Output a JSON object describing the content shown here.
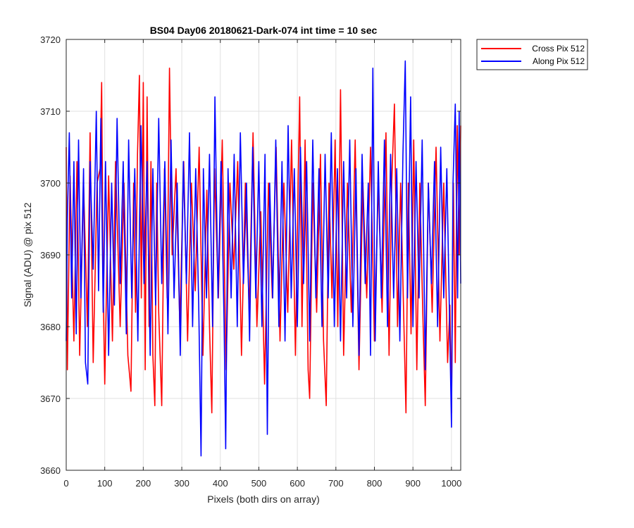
{
  "chart_data": {
    "type": "line",
    "title": "BS04 Day06 20180621-Dark-074 int time = 10 sec",
    "xlabel": "Pixels (both dirs on array)",
    "ylabel": "Signal (ADU) @ pix 512",
    "xlim": [
      0,
      1024
    ],
    "ylim": [
      3660,
      3720
    ],
    "xticks": [
      0,
      100,
      200,
      300,
      400,
      500,
      600,
      700,
      800,
      900,
      1000
    ],
    "yticks": [
      3660,
      3670,
      3680,
      3690,
      3700,
      3710,
      3720
    ],
    "grid": true,
    "legend_position": "outside-top-right",
    "series": [
      {
        "name": "Cross Pix 512",
        "color": "#ff0000",
        "points": [
          [
            0,
            3705
          ],
          [
            3,
            3674
          ],
          [
            10,
            3701
          ],
          [
            20,
            3678
          ],
          [
            28,
            3703
          ],
          [
            35,
            3676
          ],
          [
            45,
            3700
          ],
          [
            55,
            3680
          ],
          [
            62,
            3707
          ],
          [
            70,
            3675
          ],
          [
            80,
            3700
          ],
          [
            88,
            3702
          ],
          [
            92,
            3714
          ],
          [
            96,
            3685
          ],
          [
            100,
            3672
          ],
          [
            110,
            3701
          ],
          [
            120,
            3678
          ],
          [
            128,
            3703
          ],
          [
            140,
            3680
          ],
          [
            150,
            3700
          ],
          [
            160,
            3676
          ],
          [
            165,
            3673
          ],
          [
            168,
            3671
          ],
          [
            175,
            3700
          ],
          [
            180,
            3682
          ],
          [
            185,
            3704
          ],
          [
            190,
            3715
          ],
          [
            195,
            3684
          ],
          [
            200,
            3714
          ],
          [
            205,
            3674
          ],
          [
            210,
            3712
          ],
          [
            215,
            3680
          ],
          [
            220,
            3703
          ],
          [
            225,
            3676
          ],
          [
            230,
            3669
          ],
          [
            235,
            3700
          ],
          [
            240,
            3682
          ],
          [
            248,
            3669
          ],
          [
            255,
            3702
          ],
          [
            262,
            3684
          ],
          [
            268,
            3716
          ],
          [
            275,
            3690
          ],
          [
            285,
            3702
          ],
          [
            295,
            3680
          ],
          [
            305,
            3703
          ],
          [
            315,
            3678
          ],
          [
            325,
            3700
          ],
          [
            335,
            3685
          ],
          [
            345,
            3705
          ],
          [
            355,
            3676
          ],
          [
            365,
            3699
          ],
          [
            372,
            3680
          ],
          [
            378,
            3668
          ],
          [
            385,
            3702
          ],
          [
            395,
            3684
          ],
          [
            405,
            3706
          ],
          [
            415,
            3674
          ],
          [
            425,
            3700
          ],
          [
            435,
            3688
          ],
          [
            445,
            3703
          ],
          [
            455,
            3676
          ],
          [
            465,
            3700
          ],
          [
            475,
            3682
          ],
          [
            485,
            3707
          ],
          [
            495,
            3680
          ],
          [
            505,
            3696
          ],
          [
            515,
            3672
          ],
          [
            525,
            3700
          ],
          [
            535,
            3684
          ],
          [
            545,
            3705
          ],
          [
            555,
            3678
          ],
          [
            565,
            3700
          ],
          [
            575,
            3682
          ],
          [
            585,
            3706
          ],
          [
            595,
            3676
          ],
          [
            602,
            3700
          ],
          [
            606,
            3712
          ],
          [
            612,
            3680
          ],
          [
            620,
            3706
          ],
          [
            628,
            3674
          ],
          [
            632,
            3670
          ],
          [
            640,
            3700
          ],
          [
            650,
            3682
          ],
          [
            660,
            3704
          ],
          [
            668,
            3678
          ],
          [
            675,
            3669
          ],
          [
            682,
            3700
          ],
          [
            690,
            3684
          ],
          [
            698,
            3706
          ],
          [
            705,
            3680
          ],
          [
            712,
            3713
          ],
          [
            720,
            3676
          ],
          [
            730,
            3700
          ],
          [
            740,
            3682
          ],
          [
            750,
            3706
          ],
          [
            760,
            3674
          ],
          [
            770,
            3700
          ],
          [
            780,
            3684
          ],
          [
            790,
            3705
          ],
          [
            800,
            3678
          ],
          [
            810,
            3700
          ],
          [
            820,
            3682
          ],
          [
            830,
            3707
          ],
          [
            838,
            3676
          ],
          [
            845,
            3700
          ],
          [
            852,
            3711
          ],
          [
            860,
            3680
          ],
          [
            868,
            3700
          ],
          [
            875,
            3684
          ],
          [
            882,
            3668
          ],
          [
            888,
            3700
          ],
          [
            895,
            3679
          ],
          [
            902,
            3706
          ],
          [
            910,
            3674
          ],
          [
            918,
            3700
          ],
          [
            925,
            3683
          ],
          [
            932,
            3669
          ],
          [
            940,
            3700
          ],
          [
            950,
            3682
          ],
          [
            960,
            3705
          ],
          [
            970,
            3678
          ],
          [
            980,
            3700
          ],
          [
            990,
            3675
          ],
          [
            996,
            3683
          ],
          [
            1000,
            3668
          ],
          [
            1005,
            3700
          ],
          [
            1010,
            3675
          ],
          [
            1015,
            3708
          ],
          [
            1020,
            3690
          ],
          [
            1024,
            3708
          ]
        ]
      },
      {
        "name": "Along Pix 512",
        "color": "#0000ff",
        "points": [
          [
            0,
            3678
          ],
          [
            3,
            3695
          ],
          [
            8,
            3707
          ],
          [
            14,
            3684
          ],
          [
            20,
            3703
          ],
          [
            26,
            3679
          ],
          [
            32,
            3706
          ],
          [
            38,
            3684
          ],
          [
            45,
            3702
          ],
          [
            50,
            3675
          ],
          [
            56,
            3672
          ],
          [
            62,
            3703
          ],
          [
            70,
            3688
          ],
          [
            78,
            3710
          ],
          [
            84,
            3685
          ],
          [
            90,
            3709
          ],
          [
            96,
            3682
          ],
          [
            102,
            3703
          ],
          [
            110,
            3676
          ],
          [
            118,
            3700
          ],
          [
            125,
            3683
          ],
          [
            132,
            3709
          ],
          [
            140,
            3686
          ],
          [
            148,
            3703
          ],
          [
            156,
            3679
          ],
          [
            162,
            3706
          ],
          [
            170,
            3684
          ],
          [
            178,
            3702
          ],
          [
            186,
            3678
          ],
          [
            194,
            3708
          ],
          [
            202,
            3686
          ],
          [
            210,
            3703
          ],
          [
            218,
            3676
          ],
          [
            225,
            3702
          ],
          [
            232,
            3683
          ],
          [
            240,
            3709
          ],
          [
            248,
            3686
          ],
          [
            256,
            3703
          ],
          [
            264,
            3679
          ],
          [
            272,
            3706
          ],
          [
            280,
            3684
          ],
          [
            288,
            3700
          ],
          [
            296,
            3676
          ],
          [
            304,
            3703
          ],
          [
            312,
            3686
          ],
          [
            320,
            3707
          ],
          [
            328,
            3680
          ],
          [
            336,
            3702
          ],
          [
            344,
            3683
          ],
          [
            350,
            3662
          ],
          [
            356,
            3702
          ],
          [
            364,
            3684
          ],
          [
            372,
            3704
          ],
          [
            380,
            3680
          ],
          [
            386,
            3712
          ],
          [
            394,
            3684
          ],
          [
            402,
            3703
          ],
          [
            410,
            3680
          ],
          [
            414,
            3663
          ],
          [
            420,
            3702
          ],
          [
            428,
            3684
          ],
          [
            436,
            3704
          ],
          [
            444,
            3680
          ],
          [
            452,
            3707
          ],
          [
            460,
            3686
          ],
          [
            468,
            3700
          ],
          [
            476,
            3678
          ],
          [
            484,
            3705
          ],
          [
            492,
            3684
          ],
          [
            500,
            3703
          ],
          [
            508,
            3680
          ],
          [
            516,
            3704
          ],
          [
            522,
            3665
          ],
          [
            528,
            3700
          ],
          [
            536,
            3684
          ],
          [
            544,
            3706
          ],
          [
            552,
            3680
          ],
          [
            560,
            3703
          ],
          [
            568,
            3678
          ],
          [
            576,
            3708
          ],
          [
            584,
            3684
          ],
          [
            592,
            3702
          ],
          [
            600,
            3680
          ],
          [
            608,
            3705
          ],
          [
            616,
            3686
          ],
          [
            624,
            3703
          ],
          [
            632,
            3678
          ],
          [
            640,
            3706
          ],
          [
            648,
            3684
          ],
          [
            656,
            3702
          ],
          [
            664,
            3680
          ],
          [
            672,
            3704
          ],
          [
            680,
            3684
          ],
          [
            688,
            3707
          ],
          [
            696,
            3680
          ],
          [
            704,
            3702
          ],
          [
            712,
            3678
          ],
          [
            720,
            3703
          ],
          [
            728,
            3684
          ],
          [
            736,
            3706
          ],
          [
            744,
            3680
          ],
          [
            752,
            3702
          ],
          [
            760,
            3676
          ],
          [
            768,
            3704
          ],
          [
            776,
            3686
          ],
          [
            784,
            3700
          ],
          [
            790,
            3676
          ],
          [
            796,
            3716
          ],
          [
            802,
            3678
          ],
          [
            810,
            3703
          ],
          [
            818,
            3684
          ],
          [
            826,
            3706
          ],
          [
            834,
            3680
          ],
          [
            842,
            3704
          ],
          [
            850,
            3684
          ],
          [
            858,
            3702
          ],
          [
            866,
            3678
          ],
          [
            874,
            3704
          ],
          [
            880,
            3717
          ],
          [
            886,
            3684
          ],
          [
            894,
            3712
          ],
          [
            900,
            3680
          ],
          [
            908,
            3703
          ],
          [
            916,
            3684
          ],
          [
            924,
            3706
          ],
          [
            932,
            3674
          ],
          [
            940,
            3700
          ],
          [
            948,
            3686
          ],
          [
            956,
            3703
          ],
          [
            964,
            3680
          ],
          [
            972,
            3705
          ],
          [
            980,
            3684
          ],
          [
            988,
            3702
          ],
          [
            996,
            3678
          ],
          [
            1000,
            3666
          ],
          [
            1004,
            3700
          ],
          [
            1010,
            3711
          ],
          [
            1016,
            3684
          ],
          [
            1020,
            3710
          ],
          [
            1024,
            3686
          ]
        ]
      }
    ]
  }
}
